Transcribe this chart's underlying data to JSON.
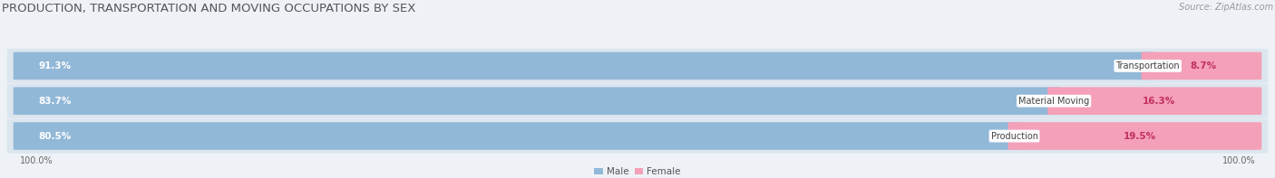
{
  "title": "PRODUCTION, TRANSPORTATION AND MOVING OCCUPATIONS BY SEX",
  "source": "Source: ZipAtlas.com",
  "categories": [
    "Transportation",
    "Material Moving",
    "Production"
  ],
  "male_values": [
    91.3,
    83.7,
    80.5
  ],
  "female_values": [
    8.7,
    16.3,
    19.5
  ],
  "male_color": "#92b8d8",
  "female_color": "#f07090",
  "female_color_light": "#f4a0b8",
  "bar_area_bg": "#dce6ef",
  "background_color": "#eef2f7",
  "title_fontsize": 9.5,
  "source_fontsize": 7.0,
  "bar_label_fontsize": 7.5,
  "category_fontsize": 7.0,
  "axis_label_fontsize": 7.0,
  "legend_fontsize": 7.5
}
